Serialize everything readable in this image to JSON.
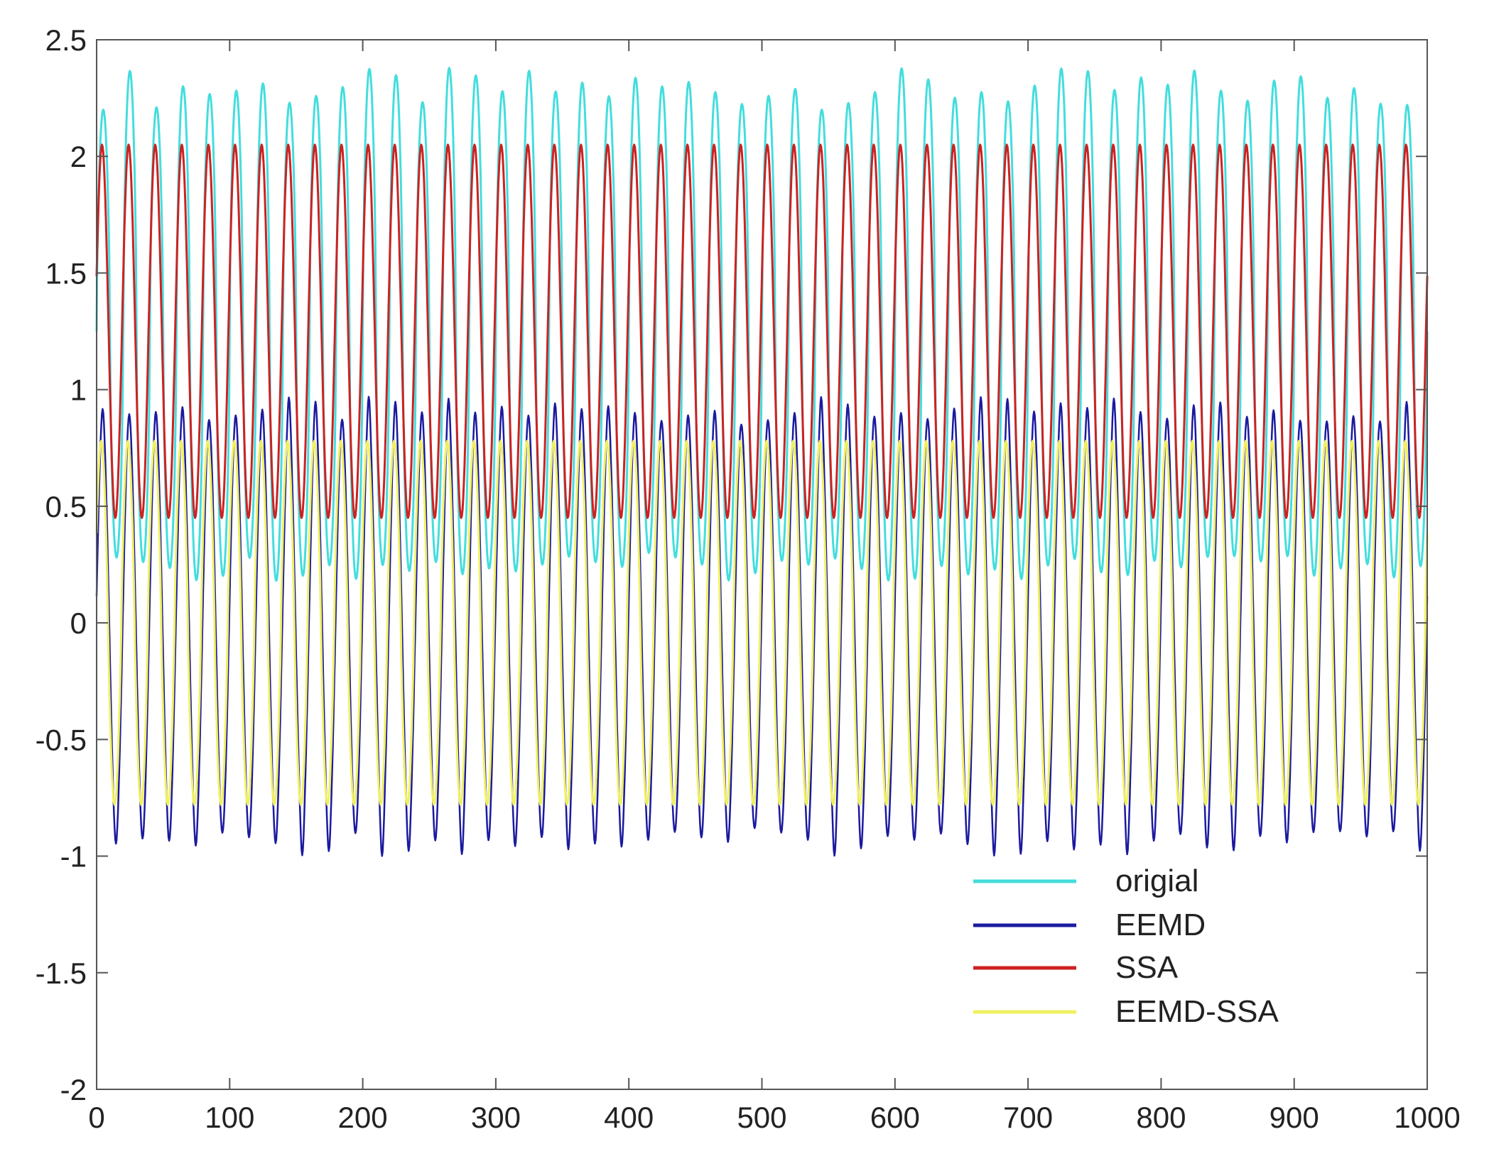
{
  "chart_data": {
    "type": "line",
    "title": "",
    "xlabel": "",
    "ylabel": "",
    "xlim": [
      0,
      1000
    ],
    "ylim": [
      -2,
      2.5
    ],
    "xticks": [
      0,
      100,
      200,
      300,
      400,
      500,
      600,
      700,
      800,
      900,
      1000
    ],
    "yticks": [
      2.5,
      2,
      1.5,
      1,
      0.5,
      0,
      -0.5,
      -1,
      -1.5,
      -2
    ],
    "xtick_labels": [
      "0",
      "100",
      "200",
      "300",
      "400",
      "500",
      "600",
      "700",
      "800",
      "900",
      "1000"
    ],
    "ytick_labels": [
      "2.5",
      "2",
      "1.5",
      "1",
      "0.5",
      "0",
      "-0.5",
      "-1",
      "-1.5",
      "-2"
    ],
    "grid": false,
    "legend_position": "lower-right",
    "approx_period": 20,
    "series": [
      {
        "name": "origial",
        "color": "#44dddd",
        "peak": 2.2,
        "trough": 0.3
      },
      {
        "name": "EEMD",
        "color": "#1a1aa0",
        "peak": 0.85,
        "trough": -0.88
      },
      {
        "name": "SSA",
        "color": "#cc2222",
        "peak": 2.05,
        "trough": 0.45
      },
      {
        "name": "EEMD-SSA",
        "color": "#f0f060",
        "peak": 0.78,
        "trough": -0.78
      }
    ]
  }
}
